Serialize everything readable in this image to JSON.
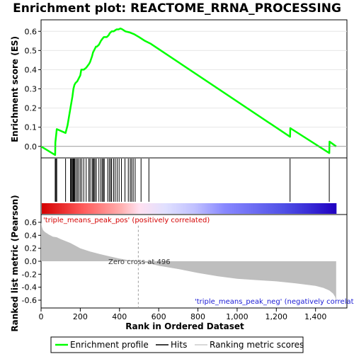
{
  "chart_data": {
    "type": "line",
    "title": "Enrichment plot: REACTOME_RRNA_PROCESSING",
    "xlabel": "Rank in Ordered Dataset",
    "x_ticks": [
      "0",
      "200",
      "400",
      "600",
      "800",
      "1,000",
      "1,200",
      "1,400"
    ],
    "x_tick_values": [
      0,
      200,
      400,
      600,
      800,
      1000,
      1200,
      1400
    ],
    "xlim": [
      0,
      1560
    ],
    "n_genes": 1507,
    "es_panel": {
      "ylabel": "Enrichment score (ES)",
      "ylim": [
        -0.06,
        0.66
      ],
      "y_ticks": [
        "0.0",
        "0.1",
        "0.2",
        "0.3",
        "0.4",
        "0.5",
        "0.6"
      ],
      "y_tick_values": [
        0.0,
        0.1,
        0.2,
        0.3,
        0.4,
        0.5,
        0.6
      ],
      "color": "#00ff00",
      "series": [
        {
          "x": [
            0,
            72,
            73,
            80,
            125,
            135,
            150,
            160,
            165,
            170,
            175,
            185,
            195,
            200,
            205,
            218,
            230,
            245,
            250,
            260,
            265,
            270,
            280,
            285,
            295,
            305,
            312,
            320,
            335,
            345,
            350,
            360,
            370,
            385,
            395,
            405,
            415,
            430,
            450,
            475,
            500,
            530,
            560,
            1270,
            1271,
            1470,
            1471,
            1505
          ],
          "y": [
            0.0,
            -0.045,
            0.02,
            0.09,
            0.07,
            0.11,
            0.2,
            0.26,
            0.3,
            0.32,
            0.33,
            0.34,
            0.36,
            0.37,
            0.4,
            0.4,
            0.41,
            0.43,
            0.44,
            0.47,
            0.49,
            0.5,
            0.52,
            0.52,
            0.53,
            0.55,
            0.56,
            0.57,
            0.57,
            0.58,
            0.59,
            0.6,
            0.6,
            0.61,
            0.61,
            0.615,
            0.61,
            0.6,
            0.595,
            0.585,
            0.57,
            0.55,
            0.535,
            0.05,
            0.095,
            -0.035,
            0.025,
            0.0
          ]
        }
      ]
    },
    "hits": [
      72,
      76,
      80,
      125,
      150,
      153,
      158,
      162,
      165,
      168,
      172,
      178,
      185,
      192,
      200,
      208,
      218,
      230,
      244,
      250,
      260,
      265,
      270,
      275,
      282,
      295,
      305,
      312,
      318,
      322,
      340,
      348,
      355,
      360,
      370,
      378,
      388,
      398,
      410,
      428,
      445,
      455,
      462,
      470,
      480,
      510,
      550,
      1270,
      1470
    ],
    "metric_panel": {
      "ylabel": "Ranked list metric (Pearson)",
      "ylim": [
        -0.72,
        0.72
      ],
      "y_ticks": [
        "0.6",
        "0.4",
        "0.2",
        "0.0",
        "-0.2",
        "-0.4",
        "-0.6"
      ],
      "y_tick_values": [
        0.6,
        0.4,
        0.2,
        0.0,
        -0.2,
        -0.4,
        -0.6
      ],
      "color": "#bebebe",
      "x": [
        0,
        5,
        10,
        20,
        40,
        60,
        80,
        100,
        150,
        200,
        250,
        300,
        350,
        400,
        450,
        496,
        550,
        600,
        700,
        800,
        900,
        1000,
        1100,
        1200,
        1300,
        1350,
        1400,
        1440,
        1470,
        1490,
        1500,
        1505
      ],
      "y": [
        0.6,
        0.52,
        0.48,
        0.45,
        0.41,
        0.38,
        0.37,
        0.34,
        0.28,
        0.2,
        0.15,
        0.11,
        0.075,
        0.04,
        0.015,
        0.0,
        -0.03,
        -0.07,
        -0.12,
        -0.18,
        -0.23,
        -0.27,
        -0.29,
        -0.31,
        -0.34,
        -0.36,
        -0.38,
        -0.41,
        -0.45,
        -0.5,
        -0.55,
        -0.62
      ],
      "zero_cross_label": "Zero cross at 496",
      "zero_cross": 496,
      "pos_label": "'triple_means_peak_pos' (positively correlated)",
      "neg_label": "'triple_means_peak_neg' (negatively correlated)"
    },
    "legend": {
      "placement": "bottom",
      "entries": [
        {
          "label": "Enrichment profile",
          "color": "#00ff00",
          "style": "line"
        },
        {
          "label": "Hits",
          "color": "#000000",
          "style": "line"
        },
        {
          "label": "Ranking metric scores",
          "color": "#cccccc",
          "style": "line"
        }
      ]
    }
  }
}
